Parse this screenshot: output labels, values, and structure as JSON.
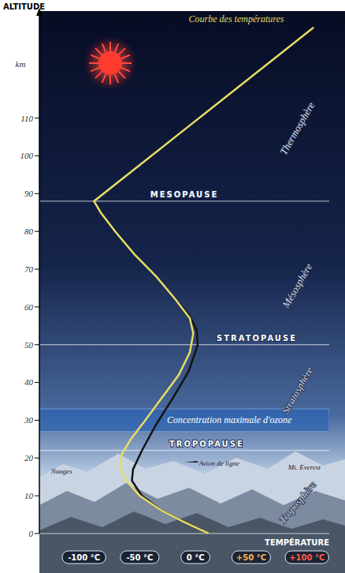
{
  "chart_data": {
    "type": "line",
    "y_label": "ALTITUDE",
    "y_unit": "km",
    "x_label": "TEMPÉRATURE",
    "curve_label": "Courbe des températures",
    "xlim": [
      -140,
      120
    ],
    "xticks": [
      {
        "value": -100,
        "label": "-100 °C"
      },
      {
        "value": -50,
        "label": "-50 °C"
      },
      {
        "value": 0,
        "label": "0 °C"
      },
      {
        "value": 50,
        "label": "+50 °C"
      },
      {
        "value": 100,
        "label": "+100 °C"
      }
    ],
    "ylim": [
      0,
      135
    ],
    "yticks": [
      0,
      10,
      20,
      30,
      40,
      50,
      60,
      70,
      80,
      90,
      100,
      110
    ],
    "grid": false,
    "series": [
      {
        "color": "#141414",
        "x": [
          12,
          -10,
          -30,
          -48,
          -57,
          -56,
          -48,
          -35,
          -20,
          -6,
          2,
          1,
          -6,
          -18
        ],
        "values": [
          0,
          3,
          6,
          10,
          14,
          17,
          22,
          29,
          36,
          43,
          50,
          54,
          58,
          62
        ]
      },
      {
        "color": "#e6dc64",
        "x": [
          12,
          -10,
          -30,
          -50,
          -62,
          -68,
          -66,
          -58,
          -45,
          -30,
          -15,
          -5,
          -2,
          -5,
          -18,
          -35,
          -55,
          -72,
          -85,
          -91,
          106
        ],
        "values": [
          0,
          3,
          6,
          10,
          14,
          18,
          21,
          25,
          30,
          36,
          42,
          48,
          53,
          57,
          62,
          68,
          74,
          80,
          85,
          88,
          134
        ]
      }
    ],
    "boundaries": [
      {
        "label": "TROPOPAUSE",
        "altitude": 22
      },
      {
        "label": "STRATOPAUSE",
        "altitude": 50
      },
      {
        "label": "MESOPAUSE",
        "altitude": 88
      }
    ],
    "layers": [
      "Troposphère",
      "Stratosphère",
      "Mésosphère",
      "Thermosphère"
    ],
    "ozone": {
      "label": "Concentration maximale d'ozone",
      "range": [
        27,
        33
      ]
    },
    "annotations": {
      "clouds": "Nuages",
      "airliner": "Avion de ligne",
      "everest": "Mt. Everest"
    }
  }
}
